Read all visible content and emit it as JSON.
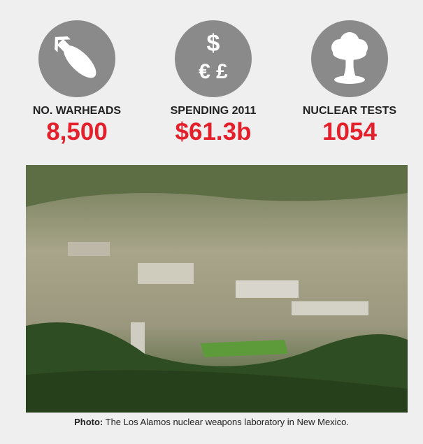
{
  "stats": [
    {
      "label": "NO. WARHEADS",
      "value": "8,500"
    },
    {
      "label": "SPENDING 2011",
      "value": "$61.3b",
      "icon_symbols": [
        "$",
        "€ £"
      ]
    },
    {
      "label": "NUCLEAR TESTS",
      "value": "1054"
    }
  ],
  "caption": {
    "lead": "Photo:",
    "text": "The Los Alamos nuclear weapons laboratory in New Mexico."
  }
}
